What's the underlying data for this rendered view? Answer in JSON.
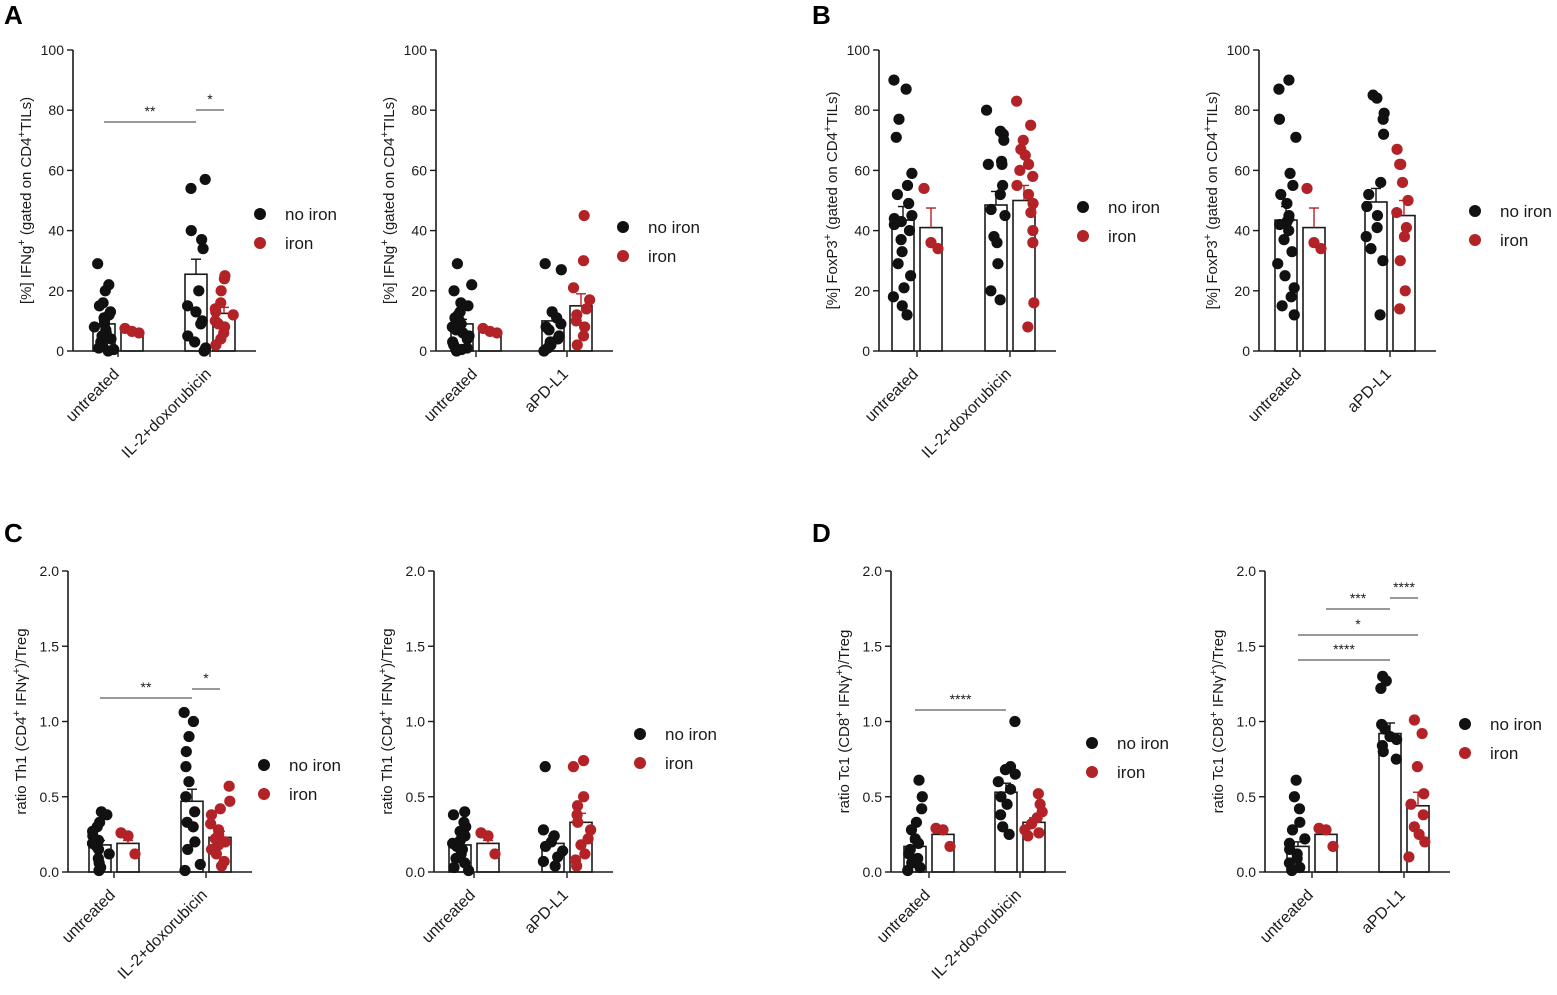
{
  "figure": {
    "panel_letters": [
      "A",
      "B",
      "C",
      "D"
    ],
    "colors": {
      "no_iron": "#111111",
      "iron": "#b22226",
      "axis": "#1a1a1a"
    }
  },
  "chart_data": [
    {
      "type": "bar",
      "panel": "A",
      "title": "",
      "ylabel": {
        "pre": "[%] IFNg",
        "sup": "+",
        "post": " (gated on CD4",
        "sup2": "+",
        "post2": "TILs)"
      },
      "ylim": [
        0,
        100
      ],
      "yticks": [
        0,
        20,
        40,
        60,
        80,
        100
      ],
      "ytick_labels": [
        "0",
        "20",
        "40",
        "60",
        "80",
        "100"
      ],
      "categories": [
        "untreated",
        "IL-2+doxorubicin"
      ],
      "legend": [
        "no iron",
        "iron"
      ],
      "series": [
        {
          "name": "no iron",
          "means": [
            9,
            25.5
          ],
          "errors": [
            1.5,
            5
          ],
          "points": [
            [
              29,
              22,
              20,
              16,
              15,
              13,
              12,
              11,
              10,
              9,
              8,
              7,
              6,
              5,
              4,
              3,
              2,
              1,
              0.5,
              0
            ],
            [
              57,
              54,
              40,
              37,
              34,
              20,
              15,
              13,
              10,
              9,
              5,
              3,
              1,
              0
            ]
          ]
        },
        {
          "name": "iron",
          "means": [
            6.5,
            12.5
          ],
          "errors": [
            0.8,
            2
          ],
          "points": [
            [
              7.5,
              6.5,
              6
            ],
            [
              25,
              24,
              20,
              16,
              14,
              13,
              12,
              10,
              9,
              8,
              6,
              4,
              2
            ]
          ]
        }
      ],
      "significance": [
        {
          "from": "untreated no iron",
          "to": "IL-2+doxorubicin no iron",
          "label": "**"
        },
        {
          "from": "IL-2+doxorubicin no iron",
          "to": "IL-2+doxorubicin iron",
          "label": "*"
        }
      ]
    },
    {
      "type": "bar",
      "panel": "A",
      "ylabel": {
        "pre": "[%] IFNg",
        "sup": "+",
        "post": " (gated on CD4",
        "sup2": "+",
        "post2": "TILs)"
      },
      "ylim": [
        0,
        100
      ],
      "yticks": [
        0,
        20,
        40,
        60,
        80,
        100
      ],
      "ytick_labels": [
        "0",
        "20",
        "40",
        "60",
        "80",
        "100"
      ],
      "categories": [
        "untreated",
        "aPD-L1"
      ],
      "legend": [
        "no iron",
        "iron"
      ],
      "series": [
        {
          "name": "no iron",
          "means": [
            9,
            10
          ],
          "errors": [
            1.5,
            2
          ],
          "points": [
            [
              29,
              22,
              20,
              16,
              15,
              13,
              12,
              11,
              10,
              9,
              8,
              7,
              6,
              5,
              4,
              3,
              2,
              1,
              0.5,
              0
            ],
            [
              29,
              27,
              13,
              11,
              9,
              8,
              7,
              5,
              4,
              3,
              2,
              1,
              0
            ]
          ]
        },
        {
          "name": "iron",
          "means": [
            6.5,
            15
          ],
          "errors": [
            0.8,
            4
          ],
          "points": [
            [
              7.5,
              6.5,
              6
            ],
            [
              45,
              30,
              21,
              17,
              14,
              12,
              10,
              8,
              5,
              2
            ]
          ]
        }
      ],
      "significance": []
    },
    {
      "type": "bar",
      "panel": "B",
      "ylabel": {
        "pre": "[%] FoxP3",
        "sup": "+",
        "post": " (gated on CD4",
        "sup2": "+",
        "post2": "TILs)"
      },
      "ylim": [
        0,
        100
      ],
      "yticks": [
        0,
        20,
        40,
        60,
        80,
        100
      ],
      "ytick_labels": [
        "0",
        "20",
        "40",
        "60",
        "80",
        "100"
      ],
      "categories": [
        "untreated",
        "IL-2+doxorubicin"
      ],
      "legend": [
        "no iron",
        "iron"
      ],
      "series": [
        {
          "name": "no iron",
          "means": [
            43.5,
            48.5
          ],
          "errors": [
            4.5,
            4.5
          ],
          "points": [
            [
              90,
              87,
              77,
              71,
              59,
              55,
              52,
              49,
              45,
              44,
              43,
              42,
              40,
              37,
              33,
              29,
              25,
              21,
              18,
              15,
              12
            ],
            [
              80,
              73,
              72,
              70,
              63,
              62,
              62,
              55,
              52,
              47,
              45,
              38,
              36,
              29,
              20,
              17
            ]
          ]
        },
        {
          "name": "iron",
          "means": [
            41,
            50
          ],
          "errors": [
            6.5,
            5
          ],
          "points": [
            [
              54,
              36,
              34
            ],
            [
              83,
              75,
              70,
              67,
              65,
              62,
              60,
              58,
              55,
              52,
              49,
              46,
              40,
              36,
              16,
              8
            ]
          ]
        }
      ],
      "significance": []
    },
    {
      "type": "bar",
      "panel": "B",
      "ylabel": {
        "pre": "[%] FoxP3",
        "sup": "+",
        "post": " (gated on CD4",
        "sup2": "+",
        "post2": "TILs)"
      },
      "ylim": [
        0,
        100
      ],
      "yticks": [
        0,
        20,
        40,
        60,
        80,
        100
      ],
      "ytick_labels": [
        "0",
        "20",
        "40",
        "60",
        "80",
        "100"
      ],
      "categories": [
        "untreated",
        "aPD-L1"
      ],
      "legend": [
        "no iron",
        "iron"
      ],
      "series": [
        {
          "name": "no iron",
          "means": [
            43.5,
            49.5
          ],
          "errors": [
            4.5,
            4.5
          ],
          "points": [
            [
              90,
              87,
              77,
              71,
              59,
              55,
              52,
              49,
              45,
              44,
              43,
              42,
              40,
              37,
              33,
              29,
              25,
              21,
              18,
              15,
              12
            ],
            [
              85,
              84,
              79,
              77,
              72,
              56,
              52,
              48,
              45,
              41,
              38,
              34,
              30,
              12
            ]
          ]
        },
        {
          "name": "iron",
          "means": [
            41,
            45
          ],
          "errors": [
            6.5,
            5
          ],
          "points": [
            [
              54,
              36,
              34
            ],
            [
              67,
              62,
              62,
              56,
              50,
              46,
              41,
              38,
              30,
              20,
              14
            ]
          ]
        }
      ],
      "significance": []
    },
    {
      "type": "bar",
      "panel": "C",
      "ylabel": {
        "pre": "ratio Th1 (CD4",
        "sup": "+",
        "post": " IFNγ",
        "sup2": "+",
        "post2": ")/Treg"
      },
      "ylim": [
        0,
        2
      ],
      "yticks": [
        0,
        0.5,
        1,
        1.5,
        2
      ],
      "ytick_labels": [
        "0.0",
        "0.5",
        "1.0",
        "1.5",
        "2.0"
      ],
      "categories": [
        "untreated",
        "IL-2+doxorubicin"
      ],
      "legend": [
        "no iron",
        "iron"
      ],
      "series": [
        {
          "name": "no iron",
          "means": [
            0.18,
            0.47
          ],
          "errors": [
            0.03,
            0.08
          ],
          "points": [
            [
              0.4,
              0.38,
              0.33,
              0.3,
              0.27,
              0.24,
              0.21,
              0.19,
              0.17,
              0.15,
              0.12,
              0.09,
              0.06,
              0.03,
              0.01
            ],
            [
              1.06,
              1.0,
              0.9,
              0.8,
              0.7,
              0.6,
              0.5,
              0.4,
              0.33,
              0.3,
              0.2,
              0.15,
              0.05,
              0.01
            ]
          ]
        },
        {
          "name": "iron",
          "means": [
            0.19,
            0.23
          ],
          "errors": [
            0.02,
            0.04
          ],
          "points": [
            [
              0.26,
              0.24,
              0.12
            ],
            [
              0.57,
              0.47,
              0.42,
              0.38,
              0.32,
              0.28,
              0.25,
              0.22,
              0.2,
              0.18,
              0.15,
              0.12,
              0.07,
              0.04
            ]
          ]
        }
      ],
      "significance": [
        {
          "from": "untreated no iron",
          "to": "IL-2+doxorubicin no iron",
          "label": "**"
        },
        {
          "from": "IL-2+doxorubicin no iron",
          "to": "IL-2+doxorubicin iron",
          "label": "*"
        }
      ]
    },
    {
      "type": "bar",
      "panel": "C",
      "ylabel": {
        "pre": "ratio Th1 (CD4",
        "sup": "+",
        "post": " IFNγ",
        "sup2": "+",
        "post2": ")/Treg"
      },
      "ylim": [
        0,
        2
      ],
      "yticks": [
        0,
        0.5,
        1,
        1.5,
        2
      ],
      "ytick_labels": [
        "0.0",
        "0.5",
        "1.0",
        "1.5",
        "2.0"
      ],
      "categories": [
        "untreated",
        "aPD-L1"
      ],
      "legend": [
        "no iron",
        "iron"
      ],
      "series": [
        {
          "name": "no iron",
          "means": [
            0.18,
            0.19
          ],
          "errors": [
            0.03,
            0.05
          ],
          "points": [
            [
              0.4,
              0.38,
              0.33,
              0.3,
              0.27,
              0.24,
              0.21,
              0.19,
              0.17,
              0.15,
              0.12,
              0.09,
              0.06,
              0.03,
              0.01
            ],
            [
              0.7,
              0.28,
              0.24,
              0.2,
              0.17,
              0.14,
              0.1,
              0.07,
              0.04
            ]
          ]
        },
        {
          "name": "iron",
          "means": [
            0.19,
            0.33
          ],
          "errors": [
            0.02,
            0.06
          ],
          "points": [
            [
              0.26,
              0.24,
              0.12
            ],
            [
              0.74,
              0.7,
              0.5,
              0.44,
              0.38,
              0.33,
              0.28,
              0.22,
              0.18,
              0.12,
              0.08,
              0.04
            ]
          ]
        }
      ],
      "significance": []
    },
    {
      "type": "bar",
      "panel": "D",
      "ylabel": {
        "pre": "ratio Tc1 (CD8",
        "sup": "+",
        "post": " IFNγ",
        "sup2": "+",
        "post2": ")/Treg"
      },
      "ylim": [
        0,
        2
      ],
      "yticks": [
        0,
        0.5,
        1,
        1.5,
        2
      ],
      "ytick_labels": [
        "0.0",
        "0.5",
        "1.0",
        "1.5",
        "2.0"
      ],
      "categories": [
        "untreated",
        "IL-2+doxorubicin"
      ],
      "legend": [
        "no iron",
        "iron"
      ],
      "series": [
        {
          "name": "no iron",
          "means": [
            0.17,
            0.53
          ],
          "errors": [
            0.03,
            0.06
          ],
          "points": [
            [
              0.61,
              0.5,
              0.42,
              0.33,
              0.28,
              0.22,
              0.19,
              0.15,
              0.12,
              0.09,
              0.06,
              0.03,
              0.01
            ],
            [
              1.0,
              0.7,
              0.68,
              0.65,
              0.6,
              0.55,
              0.5,
              0.45,
              0.38,
              0.3,
              0.25
            ]
          ]
        },
        {
          "name": "iron",
          "means": [
            0.25,
            0.33
          ],
          "errors": [
            0.02,
            0.03
          ],
          "points": [
            [
              0.29,
              0.28,
              0.17
            ],
            [
              0.52,
              0.45,
              0.4,
              0.36,
              0.32,
              0.28,
              0.26,
              0.24
            ]
          ]
        }
      ],
      "significance": [
        {
          "from": "untreated no iron",
          "to": "IL-2+doxorubicin no iron",
          "label": "****"
        }
      ]
    },
    {
      "type": "bar",
      "panel": "D",
      "ylabel": {
        "pre": "ratio Tc1 (CD8",
        "sup": "+",
        "post": " IFNγ",
        "sup2": "+",
        "post2": ")/Treg"
      },
      "ylim": [
        0,
        2
      ],
      "yticks": [
        0,
        0.5,
        1,
        1.5,
        2
      ],
      "ytick_labels": [
        "0.0",
        "0.5",
        "1.0",
        "1.5",
        "2.0"
      ],
      "categories": [
        "untreated",
        "aPD-L1"
      ],
      "legend": [
        "no iron",
        "iron"
      ],
      "series": [
        {
          "name": "no iron",
          "means": [
            0.17,
            0.92
          ],
          "errors": [
            0.03,
            0.07
          ],
          "points": [
            [
              0.61,
              0.5,
              0.42,
              0.33,
              0.28,
              0.22,
              0.19,
              0.15,
              0.12,
              0.09,
              0.06,
              0.03,
              0.01
            ],
            [
              1.3,
              1.27,
              1.22,
              0.98,
              0.95,
              0.9,
              0.88,
              0.84,
              0.8,
              0.75
            ]
          ]
        },
        {
          "name": "iron",
          "means": [
            0.25,
            0.44
          ],
          "errors": [
            0.02,
            0.09
          ],
          "points": [
            [
              0.29,
              0.28,
              0.17
            ],
            [
              1.01,
              0.92,
              0.7,
              0.52,
              0.45,
              0.38,
              0.3,
              0.25,
              0.2,
              0.1
            ]
          ]
        }
      ],
      "significance": [
        {
          "from": "untreated iron",
          "to": "aPD-L1 no iron",
          "label": "***"
        },
        {
          "from": "aPD-L1 no iron",
          "to": "aPD-L1 iron",
          "label": "****"
        },
        {
          "from": "untreated no iron",
          "to": "aPD-L1 iron",
          "label": "*"
        },
        {
          "from": "untreated no iron",
          "to": "aPD-L1 no iron",
          "label": "****"
        }
      ]
    }
  ]
}
